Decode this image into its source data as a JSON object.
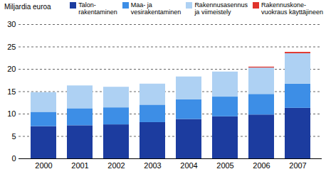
{
  "chart_data": {
    "type": "bar",
    "stacked": true,
    "y_label": "Miljardia euroa",
    "categories": [
      "2000",
      "2001",
      "2002",
      "2003",
      "2004",
      "2005",
      "2006",
      "2007"
    ],
    "series": [
      {
        "name": "Talon-\nrakentaminen",
        "color": "#1c3c9f",
        "values": [
          7.2,
          7.4,
          7.6,
          8.1,
          8.8,
          9.4,
          9.8,
          11.3
        ]
      },
      {
        "name": "Maa- ja\nvesirakentaminen",
        "color": "#3d8ee6",
        "values": [
          3.2,
          3.8,
          3.8,
          3.9,
          4.4,
          4.4,
          4.6,
          5.4
        ]
      },
      {
        "name": "Rakennusasennus\nja viimeistely",
        "color": "#aed1f3",
        "values": [
          4.4,
          5.1,
          4.6,
          4.7,
          5.1,
          5.6,
          5.9,
          6.8
        ]
      },
      {
        "name": "Rakennuskone-\nvuokraus käyttäjineen",
        "color": "#e0332b",
        "values": [
          0,
          0,
          0,
          0,
          0,
          0,
          0.2,
          0.3
        ]
      }
    ],
    "ylim": [
      0,
      30
    ],
    "yticks": [
      0,
      5,
      10,
      15,
      20,
      25,
      30
    ],
    "grid": true,
    "legend": "top"
  }
}
